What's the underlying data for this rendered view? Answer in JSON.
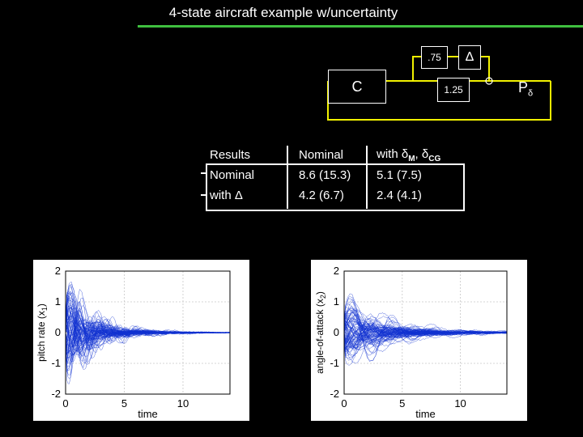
{
  "title": "4-state aircraft example w/uncertainty",
  "diagram": {
    "block_c": "C",
    "block_gain_top": ".75",
    "block_gain_mid": "1.25",
    "block_delta": "Δ",
    "output_label": "P",
    "output_sub": "δ"
  },
  "table": {
    "headers": [
      "Results",
      "Nominal",
      "with δM, δCG"
    ],
    "rows": [
      [
        "Nominal",
        "8.6 (15.3)",
        "5.1 (7.5)"
      ],
      [
        "with Δ",
        "4.2 (6.7)",
        "2.4 (4.1)"
      ]
    ]
  },
  "chart_data": [
    {
      "type": "line",
      "ylabel": "pitch rate (x1)",
      "ylabel_main": "pitch rate (x",
      "ylabel_sub": "1",
      "ylabel_end": ")",
      "xlabel": "time",
      "xlim": [
        0,
        14
      ],
      "ylim": [
        -2,
        2
      ],
      "xticks": [
        "0",
        "5",
        "10"
      ],
      "yticks": [
        "2",
        "1",
        "0",
        "-1",
        "-2"
      ],
      "grid": true,
      "series_color": "#1030d0",
      "description": "ensemble of ~100 trajectories"
    },
    {
      "type": "line",
      "ylabel": "angle-of-attack (x2)",
      "ylabel_main": "angle-of-attack (x",
      "ylabel_sub": "2",
      "ylabel_end": ")",
      "xlabel": "time",
      "xlim": [
        0,
        14
      ],
      "ylim": [
        -2,
        2
      ],
      "xticks": [
        "0",
        "5",
        "10"
      ],
      "yticks": [
        "2",
        "1",
        "0",
        "-1",
        "-2"
      ],
      "grid": true,
      "series_color": "#1030d0",
      "description": "ensemble of ~100 trajectories"
    }
  ]
}
